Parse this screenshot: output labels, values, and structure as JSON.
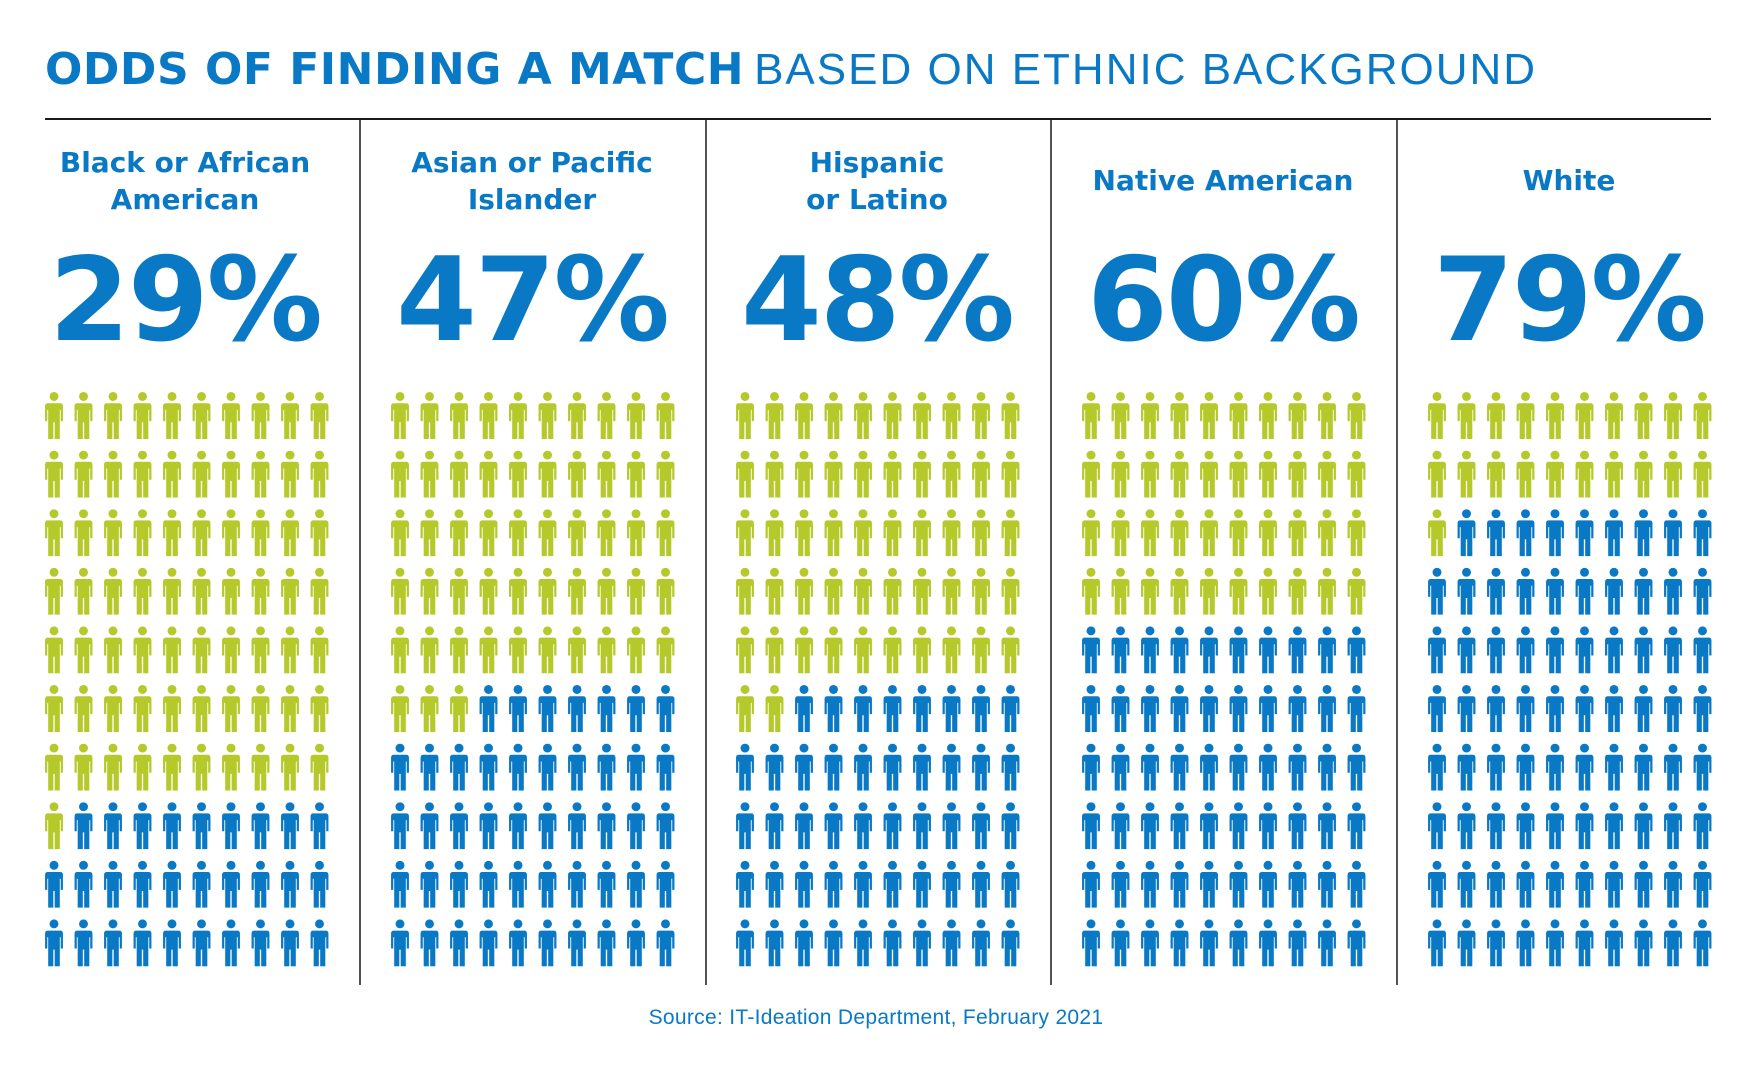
{
  "title": {
    "bold": "ODDS OF FINDING A MATCH",
    "light": "BASED ON ETHNIC BACKGROUND"
  },
  "source": "Source: IT-Ideation Department, February 2021",
  "colors": {
    "accent_blue": "#0a79c5",
    "person_green": "#b6c92b",
    "person_blue": "#0a79c5",
    "divider": "#1a1a1a"
  },
  "icon": "person-icon",
  "chart_data": {
    "type": "pictograph",
    "unit": "%",
    "icons_per_group": 100,
    "grid": "10x10",
    "highlight": "blue",
    "categories": [
      [
        "Black or African",
        "American"
      ],
      [
        "Asian or Pacific",
        "Islander"
      ],
      [
        "Hispanic",
        "or Latino"
      ],
      [
        "Native American"
      ],
      [
        "White"
      ]
    ],
    "values": [
      29,
      47,
      48,
      60,
      79
    ],
    "labels": [
      "29%",
      "47%",
      "48%",
      "60%",
      "79%"
    ]
  }
}
